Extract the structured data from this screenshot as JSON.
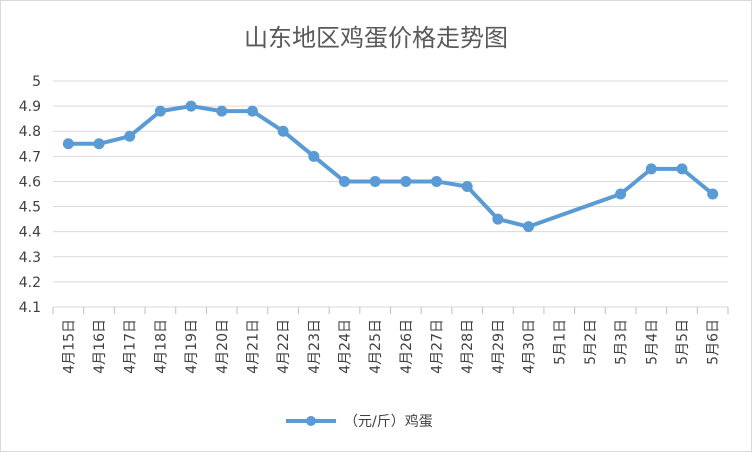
{
  "chart_data": {
    "type": "line",
    "title": "山东地区鸡蛋价格走势图",
    "xlabel": "",
    "ylabel": "",
    "categories": [
      "4月15日",
      "4月16日",
      "4月17日",
      "4月18日",
      "4月19日",
      "4月20日",
      "4月21日",
      "4月22日",
      "4月23日",
      "4月24日",
      "4月25日",
      "4月26日",
      "4月27日",
      "4月28日",
      "4月29日",
      "4月30日",
      "5月1日",
      "5月2日",
      "5月3日",
      "5月4日",
      "5月5日",
      "5月6日"
    ],
    "series": [
      {
        "name": "（元/斤）鸡蛋",
        "color": "#5b9bd5",
        "values": [
          4.75,
          4.75,
          4.78,
          4.88,
          4.9,
          4.88,
          4.88,
          4.8,
          4.7,
          4.6,
          4.6,
          4.6,
          4.6,
          4.58,
          4.45,
          4.42,
          null,
          null,
          4.55,
          4.65,
          4.65,
          4.55
        ]
      }
    ],
    "ylim": [
      4.1,
      5
    ],
    "yticks": [
      "4.1",
      "4.2",
      "4.3",
      "4.4",
      "4.5",
      "4.6",
      "4.7",
      "4.8",
      "4.9",
      "5"
    ],
    "grid": true,
    "legend": "bottom",
    "gaps": "connected"
  }
}
